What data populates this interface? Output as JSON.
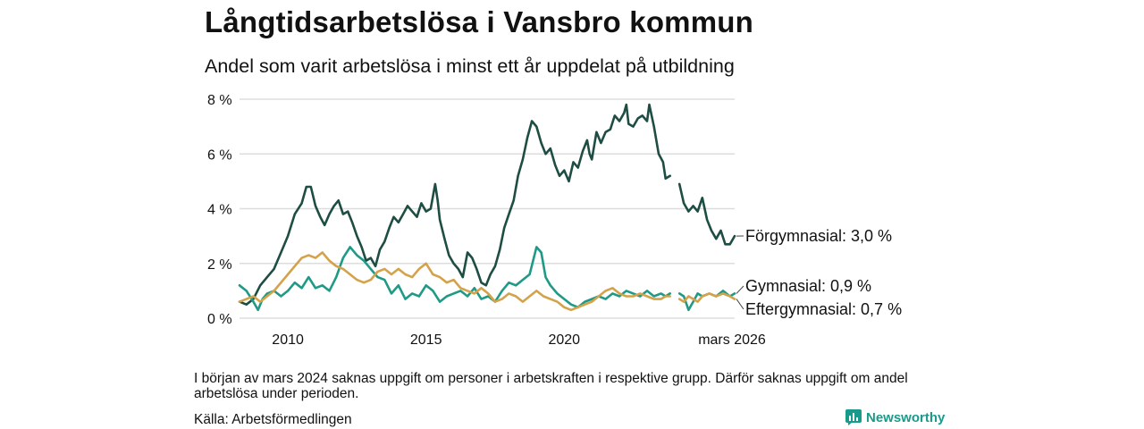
{
  "header": {
    "title": "Långtidsarbetslösa i Vansbro kommun",
    "subtitle": "Andel som varit arbetslösa i minst ett år uppdelat på utbildning"
  },
  "footer": {
    "note": "I början av mars 2024 saknas uppgift om personer i arbetskraften i respektive grupp. Därför saknas uppgift om andel arbetslösa under perioden.",
    "source": "Källa: Arbetsförmedlingen",
    "brand": "Newsworthy"
  },
  "colors": {
    "forgymnasial": "#1e4d43",
    "gymnasial": "#1f9a86",
    "eftergymnasial": "#d4a24a",
    "grid": "#dddddd",
    "brand": "#1a9a8a"
  },
  "chart_data": {
    "type": "line",
    "title": "Långtidsarbetslösa i Vansbro kommun",
    "subtitle": "Andel som varit arbetslösa i minst ett år uppdelat på utbildning",
    "ylabel": "",
    "xlabel": "",
    "ylim": [
      0,
      8
    ],
    "xlim": [
      2008.25,
      2026.17
    ],
    "y_ticks": [
      {
        "value": 0,
        "label": "0 %"
      },
      {
        "value": 2,
        "label": "2 %"
      },
      {
        "value": 4,
        "label": "4 %"
      },
      {
        "value": 6,
        "label": "6 %"
      },
      {
        "value": 8,
        "label": "8 %"
      }
    ],
    "x_ticks": [
      {
        "value": 2010,
        "label": "2010"
      },
      {
        "value": 2015,
        "label": "2015"
      },
      {
        "value": 2020,
        "label": "2020"
      },
      {
        "value": 2026.17,
        "label": "mars 2026"
      }
    ],
    "gap": [
      2024.0,
      2024.17
    ],
    "series": [
      {
        "name": "Förgymnasial",
        "label": "Förgymnasial: 3,0 %",
        "color": "#1e4d43",
        "points": [
          [
            2008.25,
            0.6
          ],
          [
            2008.5,
            0.5
          ],
          [
            2008.75,
            0.7
          ],
          [
            2009.0,
            1.2
          ],
          [
            2009.25,
            1.5
          ],
          [
            2009.5,
            1.8
          ],
          [
            2009.75,
            2.4
          ],
          [
            2010.0,
            3.0
          ],
          [
            2010.25,
            3.8
          ],
          [
            2010.5,
            4.2
          ],
          [
            2010.67,
            4.8
          ],
          [
            2010.83,
            4.8
          ],
          [
            2011.0,
            4.1
          ],
          [
            2011.17,
            3.7
          ],
          [
            2011.33,
            3.4
          ],
          [
            2011.5,
            3.8
          ],
          [
            2011.67,
            4.1
          ],
          [
            2011.83,
            4.3
          ],
          [
            2012.0,
            3.8
          ],
          [
            2012.17,
            3.9
          ],
          [
            2012.33,
            3.5
          ],
          [
            2012.5,
            3.0
          ],
          [
            2012.67,
            2.6
          ],
          [
            2012.83,
            2.1
          ],
          [
            2013.0,
            2.2
          ],
          [
            2013.17,
            1.9
          ],
          [
            2013.33,
            2.5
          ],
          [
            2013.5,
            2.8
          ],
          [
            2013.67,
            3.3
          ],
          [
            2013.83,
            3.7
          ],
          [
            2014.0,
            3.5
          ],
          [
            2014.17,
            3.8
          ],
          [
            2014.33,
            4.1
          ],
          [
            2014.5,
            3.9
          ],
          [
            2014.67,
            3.7
          ],
          [
            2014.83,
            4.2
          ],
          [
            2015.0,
            3.9
          ],
          [
            2015.17,
            4.0
          ],
          [
            2015.33,
            4.9
          ],
          [
            2015.42,
            4.3
          ],
          [
            2015.5,
            3.6
          ],
          [
            2015.67,
            2.9
          ],
          [
            2015.83,
            2.3
          ],
          [
            2016.0,
            2.0
          ],
          [
            2016.17,
            1.8
          ],
          [
            2016.33,
            1.5
          ],
          [
            2016.5,
            2.4
          ],
          [
            2016.67,
            2.2
          ],
          [
            2016.83,
            1.8
          ],
          [
            2017.0,
            1.3
          ],
          [
            2017.17,
            1.2
          ],
          [
            2017.33,
            1.6
          ],
          [
            2017.5,
            1.9
          ],
          [
            2017.67,
            2.5
          ],
          [
            2017.83,
            3.3
          ],
          [
            2018.0,
            3.8
          ],
          [
            2018.17,
            4.3
          ],
          [
            2018.33,
            5.2
          ],
          [
            2018.5,
            5.8
          ],
          [
            2018.67,
            6.6
          ],
          [
            2018.83,
            7.2
          ],
          [
            2019.0,
            7.0
          ],
          [
            2019.17,
            6.4
          ],
          [
            2019.33,
            6.0
          ],
          [
            2019.5,
            6.2
          ],
          [
            2019.67,
            5.6
          ],
          [
            2019.83,
            5.2
          ],
          [
            2020.0,
            5.4
          ],
          [
            2020.17,
            5.0
          ],
          [
            2020.33,
            5.7
          ],
          [
            2020.5,
            5.5
          ],
          [
            2020.67,
            6.1
          ],
          [
            2020.83,
            6.5
          ],
          [
            2020.92,
            6.0
          ],
          [
            2021.0,
            5.8
          ],
          [
            2021.17,
            6.8
          ],
          [
            2021.33,
            6.4
          ],
          [
            2021.5,
            6.8
          ],
          [
            2021.67,
            6.9
          ],
          [
            2021.83,
            7.4
          ],
          [
            2022.0,
            7.2
          ],
          [
            2022.17,
            7.5
          ],
          [
            2022.25,
            7.8
          ],
          [
            2022.33,
            7.1
          ],
          [
            2022.5,
            7.0
          ],
          [
            2022.67,
            7.3
          ],
          [
            2022.83,
            7.4
          ],
          [
            2023.0,
            7.2
          ],
          [
            2023.08,
            7.8
          ],
          [
            2023.25,
            7.0
          ],
          [
            2023.42,
            6.0
          ],
          [
            2023.58,
            5.7
          ],
          [
            2023.67,
            5.1
          ],
          [
            2023.83,
            5.2
          ],
          null,
          [
            2024.17,
            4.9
          ],
          [
            2024.33,
            4.2
          ],
          [
            2024.5,
            3.9
          ],
          [
            2024.67,
            4.1
          ],
          [
            2024.83,
            3.9
          ],
          [
            2025.0,
            4.4
          ],
          [
            2025.17,
            3.6
          ],
          [
            2025.33,
            3.2
          ],
          [
            2025.5,
            2.9
          ],
          [
            2025.67,
            3.2
          ],
          [
            2025.83,
            2.7
          ],
          [
            2026.0,
            2.7
          ],
          [
            2026.17,
            3.0
          ]
        ]
      },
      {
        "name": "Gymnasial",
        "label": "Gymnasial: 0,9 %",
        "color": "#1f9a86",
        "points": [
          [
            2008.25,
            1.2
          ],
          [
            2008.5,
            1.0
          ],
          [
            2008.75,
            0.6
          ],
          [
            2008.92,
            0.3
          ],
          [
            2009.08,
            0.7
          ],
          [
            2009.25,
            0.9
          ],
          [
            2009.5,
            1.0
          ],
          [
            2009.75,
            0.8
          ],
          [
            2010.0,
            1.0
          ],
          [
            2010.25,
            1.3
          ],
          [
            2010.5,
            1.1
          ],
          [
            2010.75,
            1.5
          ],
          [
            2011.0,
            1.1
          ],
          [
            2011.25,
            1.2
          ],
          [
            2011.5,
            1.0
          ],
          [
            2011.75,
            1.5
          ],
          [
            2012.0,
            2.2
          ],
          [
            2012.25,
            2.6
          ],
          [
            2012.5,
            2.3
          ],
          [
            2012.75,
            2.1
          ],
          [
            2013.0,
            1.8
          ],
          [
            2013.25,
            1.5
          ],
          [
            2013.5,
            1.4
          ],
          [
            2013.75,
            0.9
          ],
          [
            2014.0,
            1.2
          ],
          [
            2014.25,
            0.7
          ],
          [
            2014.5,
            0.9
          ],
          [
            2014.75,
            0.8
          ],
          [
            2015.0,
            1.2
          ],
          [
            2015.25,
            1.0
          ],
          [
            2015.5,
            0.6
          ],
          [
            2015.75,
            0.8
          ],
          [
            2016.0,
            0.9
          ],
          [
            2016.25,
            1.0
          ],
          [
            2016.5,
            0.8
          ],
          [
            2016.75,
            1.1
          ],
          [
            2017.0,
            0.7
          ],
          [
            2017.25,
            0.8
          ],
          [
            2017.5,
            0.6
          ],
          [
            2017.75,
            1.0
          ],
          [
            2018.0,
            1.3
          ],
          [
            2018.25,
            1.2
          ],
          [
            2018.5,
            1.4
          ],
          [
            2018.75,
            1.6
          ],
          [
            2019.0,
            2.6
          ],
          [
            2019.17,
            2.4
          ],
          [
            2019.33,
            1.5
          ],
          [
            2019.5,
            1.2
          ],
          [
            2019.75,
            0.9
          ],
          [
            2020.0,
            0.7
          ],
          [
            2020.25,
            0.5
          ],
          [
            2020.5,
            0.4
          ],
          [
            2020.75,
            0.6
          ],
          [
            2021.0,
            0.7
          ],
          [
            2021.25,
            0.8
          ],
          [
            2021.5,
            0.7
          ],
          [
            2021.75,
            0.9
          ],
          [
            2022.0,
            0.8
          ],
          [
            2022.25,
            1.0
          ],
          [
            2022.5,
            0.9
          ],
          [
            2022.75,
            0.8
          ],
          [
            2023.0,
            1.0
          ],
          [
            2023.25,
            0.8
          ],
          [
            2023.5,
            0.9
          ],
          [
            2023.67,
            0.8
          ],
          [
            2023.83,
            0.9
          ],
          null,
          [
            2024.17,
            0.9
          ],
          [
            2024.33,
            0.8
          ],
          [
            2024.5,
            0.3
          ],
          [
            2024.67,
            0.6
          ],
          [
            2024.83,
            0.9
          ],
          [
            2025.0,
            0.8
          ],
          [
            2025.25,
            0.9
          ],
          [
            2025.5,
            0.8
          ],
          [
            2025.75,
            1.0
          ],
          [
            2026.0,
            0.8
          ],
          [
            2026.17,
            0.9
          ]
        ]
      },
      {
        "name": "Eftergymnasial",
        "label": "Eftergymnasial: 0,7 %",
        "color": "#d4a24a",
        "points": [
          [
            2008.25,
            0.6
          ],
          [
            2008.5,
            0.7
          ],
          [
            2008.75,
            0.8
          ],
          [
            2009.0,
            0.6
          ],
          [
            2009.25,
            0.8
          ],
          [
            2009.5,
            1.0
          ],
          [
            2009.75,
            1.3
          ],
          [
            2010.0,
            1.6
          ],
          [
            2010.25,
            1.9
          ],
          [
            2010.5,
            2.2
          ],
          [
            2010.75,
            2.3
          ],
          [
            2011.0,
            2.2
          ],
          [
            2011.25,
            2.4
          ],
          [
            2011.5,
            2.1
          ],
          [
            2011.75,
            1.9
          ],
          [
            2012.0,
            1.8
          ],
          [
            2012.25,
            1.6
          ],
          [
            2012.5,
            1.4
          ],
          [
            2012.75,
            1.3
          ],
          [
            2013.0,
            1.4
          ],
          [
            2013.25,
            1.7
          ],
          [
            2013.5,
            1.8
          ],
          [
            2013.75,
            1.6
          ],
          [
            2014.0,
            1.8
          ],
          [
            2014.25,
            1.6
          ],
          [
            2014.5,
            1.5
          ],
          [
            2014.75,
            1.8
          ],
          [
            2015.0,
            2.0
          ],
          [
            2015.25,
            1.6
          ],
          [
            2015.5,
            1.5
          ],
          [
            2015.75,
            1.3
          ],
          [
            2016.0,
            1.4
          ],
          [
            2016.25,
            1.1
          ],
          [
            2016.5,
            1.0
          ],
          [
            2016.75,
            0.9
          ],
          [
            2017.0,
            1.1
          ],
          [
            2017.25,
            0.9
          ],
          [
            2017.5,
            0.6
          ],
          [
            2017.75,
            0.7
          ],
          [
            2018.0,
            0.9
          ],
          [
            2018.25,
            0.8
          ],
          [
            2018.5,
            0.6
          ],
          [
            2018.75,
            0.8
          ],
          [
            2019.0,
            1.0
          ],
          [
            2019.25,
            0.8
          ],
          [
            2019.5,
            0.7
          ],
          [
            2019.75,
            0.6
          ],
          [
            2020.0,
            0.4
          ],
          [
            2020.25,
            0.3
          ],
          [
            2020.5,
            0.4
          ],
          [
            2020.75,
            0.5
          ],
          [
            2021.0,
            0.6
          ],
          [
            2021.25,
            0.8
          ],
          [
            2021.5,
            1.0
          ],
          [
            2021.75,
            1.1
          ],
          [
            2022.0,
            0.9
          ],
          [
            2022.25,
            0.8
          ],
          [
            2022.5,
            0.8
          ],
          [
            2022.75,
            0.9
          ],
          [
            2023.0,
            0.8
          ],
          [
            2023.25,
            0.7
          ],
          [
            2023.5,
            0.7
          ],
          [
            2023.67,
            0.8
          ],
          [
            2023.83,
            0.8
          ],
          null,
          [
            2024.17,
            0.7
          ],
          [
            2024.33,
            0.6
          ],
          [
            2024.5,
            0.8
          ],
          [
            2024.67,
            0.7
          ],
          [
            2024.83,
            0.6
          ],
          [
            2025.0,
            0.8
          ],
          [
            2025.25,
            0.9
          ],
          [
            2025.5,
            0.8
          ],
          [
            2025.75,
            0.9
          ],
          [
            2026.0,
            0.8
          ],
          [
            2026.17,
            0.7
          ]
        ]
      }
    ]
  }
}
